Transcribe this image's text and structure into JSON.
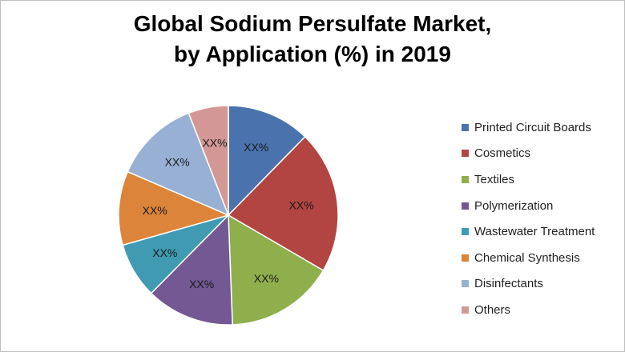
{
  "chart_data": {
    "type": "pie",
    "title": "Global Sodium Persulfate Market, by Application (%) in 2019",
    "title_lines": [
      "Global Sodium Persulfate Market,",
      "by Application (%) in 2019"
    ],
    "legend_position": "right",
    "slices": [
      {
        "label": "Printed Circuit Boards",
        "value": 12.3,
        "data_label": "XX%",
        "color": "#4a73ad"
      },
      {
        "label": "Cosmetics",
        "value": 21.1,
        "data_label": "XX%",
        "color": "#b24442"
      },
      {
        "label": "Textiles",
        "value": 16.0,
        "data_label": "XX%",
        "color": "#8faf4d"
      },
      {
        "label": "Polymerization",
        "value": 13.0,
        "data_label": "XX%",
        "color": "#735894"
      },
      {
        "label": "Wastewater Treatment",
        "value": 8.2,
        "data_label": "XX%",
        "color": "#3f9ab2"
      },
      {
        "label": "Chemical Synthesis",
        "value": 10.9,
        "data_label": "XX%",
        "color": "#dc843a"
      },
      {
        "label": "Disinfectants",
        "value": 12.6,
        "data_label": "XX%",
        "color": "#97b0d4"
      },
      {
        "label": "Others",
        "value": 5.9,
        "data_label": "XX%",
        "color": "#d39896"
      }
    ]
  }
}
